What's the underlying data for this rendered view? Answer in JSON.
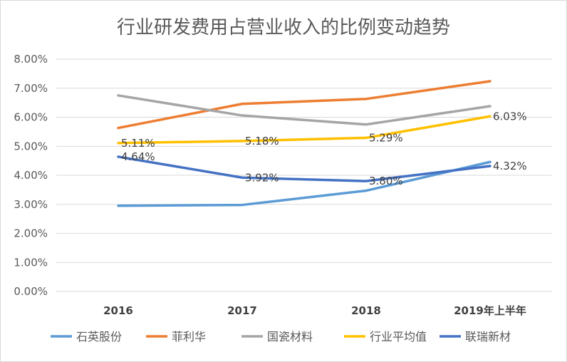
{
  "chart_data": {
    "type": "line",
    "title": "行业研发费用占营业收入的比例变动趋势",
    "categories": [
      "2016",
      "2017",
      "2018",
      "2019年上半年"
    ],
    "ylim": [
      0,
      8
    ],
    "yticks": [
      "0.00%",
      "1.00%",
      "2.00%",
      "3.00%",
      "4.00%",
      "5.00%",
      "6.00%",
      "7.00%",
      "8.00%"
    ],
    "grid": true,
    "legend_position": "bottom",
    "series": [
      {
        "name": "石英股份",
        "color": "#5b9bd5",
        "values": [
          2.95,
          2.98,
          3.47,
          4.46
        ]
      },
      {
        "name": "菲利华",
        "color": "#ed7d31",
        "values": [
          5.63,
          6.46,
          6.63,
          7.24
        ]
      },
      {
        "name": "国瓷材料",
        "color": "#a5a5a5",
        "values": [
          6.75,
          6.06,
          5.75,
          6.38
        ]
      },
      {
        "name": "行业平均值",
        "color": "#ffc000",
        "values": [
          5.11,
          5.18,
          5.29,
          6.03
        ],
        "labels": [
          "5.11%",
          "5.18%",
          "5.29%",
          "6.03%"
        ]
      },
      {
        "name": "联瑞新材",
        "color": "#4472c4",
        "values": [
          4.64,
          3.92,
          3.8,
          4.32
        ],
        "labels": [
          "4.64%",
          "3.92%",
          "3.80%",
          "4.32%"
        ]
      }
    ]
  }
}
